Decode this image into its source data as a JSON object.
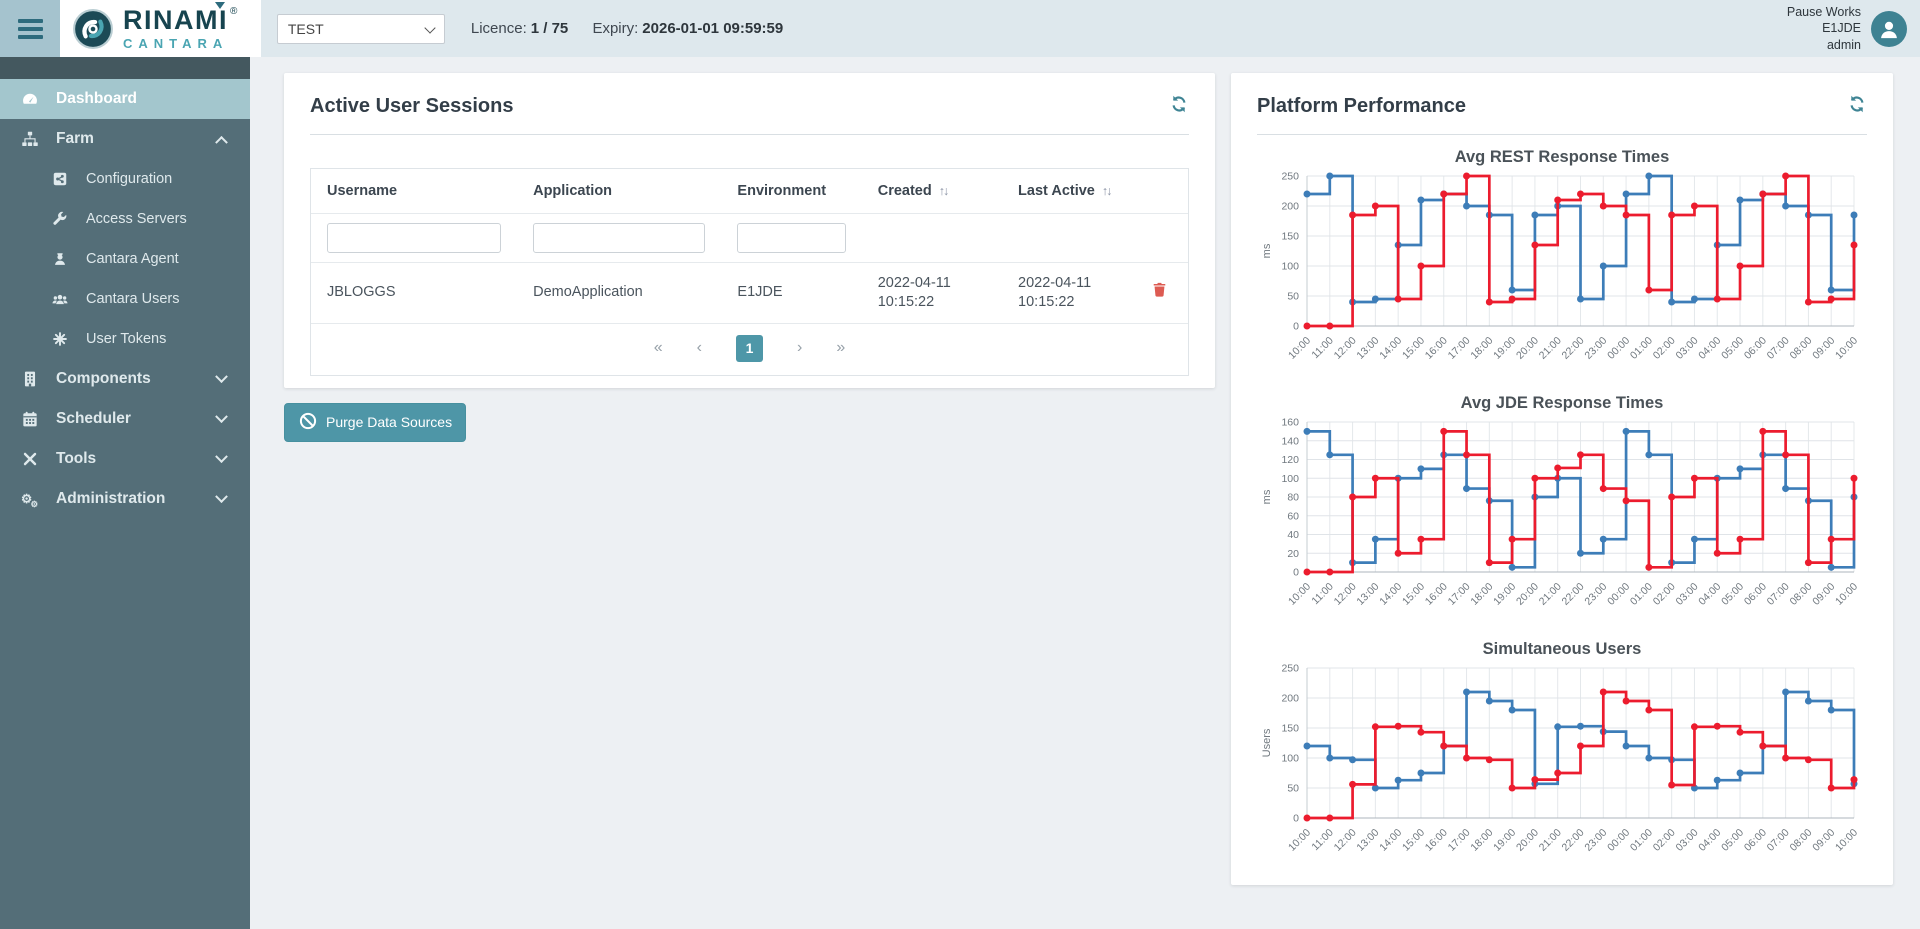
{
  "brand": {
    "name": "RINAMI",
    "reg": "®",
    "sub": "CANTARA"
  },
  "topbar": {
    "env_select": {
      "value": "TEST"
    },
    "licence_label": "Licence:",
    "licence_value": "1 / 75",
    "expiry_label": "Expiry:",
    "expiry_value": "2026-01-01 09:59:59",
    "user": {
      "action": "Pause Works",
      "environment": "E1JDE",
      "role": "admin"
    }
  },
  "colors": {
    "accent_teal": "#4e97a8",
    "sidebar_bg": "#546e78",
    "sidebar_active_bg": "#a3c6cd",
    "topbar_bg": "#dee8ed",
    "chart_blue": "#3d7db8",
    "chart_red": "#ec1c2e",
    "danger_red": "#dd5b52"
  },
  "sidebar": {
    "items": [
      {
        "label": "Dashboard",
        "icon": "dashboard-icon",
        "active": true
      },
      {
        "label": "Farm",
        "icon": "farm-icon",
        "chevron": "up"
      },
      {
        "label": "Configuration",
        "icon": "configuration-icon",
        "child": true
      },
      {
        "label": "Access Servers",
        "icon": "access-servers-icon",
        "child": true
      },
      {
        "label": "Cantara Agent",
        "icon": "cantara-agent-icon",
        "child": true
      },
      {
        "label": "Cantara Users",
        "icon": "cantara-users-icon",
        "child": true
      },
      {
        "label": "User Tokens",
        "icon": "user-tokens-icon",
        "child": true
      },
      {
        "label": "Components",
        "icon": "components-icon",
        "chevron": "down"
      },
      {
        "label": "Scheduler",
        "icon": "scheduler-icon",
        "chevron": "down"
      },
      {
        "label": "Tools",
        "icon": "tools-icon",
        "chevron": "down"
      },
      {
        "label": "Administration",
        "icon": "administration-icon",
        "chevron": "down"
      }
    ]
  },
  "sessions_panel": {
    "title": "Active User Sessions",
    "refresh_icon": "refresh-icon",
    "table": {
      "columns": [
        {
          "label": "Username",
          "filter": true
        },
        {
          "label": "Application",
          "filter": true
        },
        {
          "label": "Environment",
          "filter": true
        },
        {
          "label": "Created",
          "sortable": true
        },
        {
          "label": "Last Active",
          "sortable": true
        },
        {
          "label": "",
          "action": true
        }
      ],
      "sort_glyph": "↑↓",
      "rows": [
        {
          "username": "JBLOGGS",
          "application": "DemoApplication",
          "environment": "E1JDE",
          "created": [
            "2022-04-11",
            "10:15:22"
          ],
          "last_active": [
            "2022-04-11",
            "10:15:22"
          ],
          "action_icon": "trash-icon"
        }
      ]
    },
    "pagination": {
      "first": "«",
      "prev": "‹",
      "page": "1",
      "next": "›",
      "last": "»"
    },
    "purge_label": "Purge Data Sources",
    "purge_icon": "ban-icon"
  },
  "performance_panel": {
    "title": "Platform Performance",
    "refresh_icon": "refresh-icon"
  },
  "chart_data": [
    {
      "type": "line",
      "subtype": "step-after",
      "title": "Avg REST Response Times",
      "xlabel": "",
      "ylabel": "ms",
      "ylim": [
        0,
        250
      ],
      "yticks": [
        0,
        50,
        100,
        150,
        200,
        250
      ],
      "grid": true,
      "legend_position": "none",
      "x": [
        "10:00",
        "11:00",
        "12:00",
        "13:00",
        "14:00",
        "15:00",
        "16:00",
        "17:00",
        "18:00",
        "19:00",
        "20:00",
        "21:00",
        "22:00",
        "23:00",
        "00:00",
        "01:00",
        "02:00",
        "03:00",
        "04:00",
        "05:00",
        "06:00",
        "07:00",
        "08:00",
        "09:00",
        "10:00"
      ],
      "series": [
        {
          "name": "blue-series",
          "color": "#3d7db8",
          "values": [
            220,
            250,
            40,
            45,
            135,
            210,
            220,
            200,
            185,
            60,
            185,
            200,
            45,
            100,
            220,
            250,
            40,
            45,
            135,
            210,
            220,
            200,
            185,
            60,
            185
          ]
        },
        {
          "name": "red-series",
          "color": "#ec1c2e",
          "values": [
            0,
            0,
            185,
            200,
            45,
            100,
            220,
            250,
            40,
            45,
            135,
            210,
            220,
            200,
            185,
            60,
            185,
            200,
            45,
            100,
            220,
            250,
            40,
            45,
            135
          ]
        }
      ]
    },
    {
      "type": "line",
      "subtype": "step-after",
      "title": "Avg JDE Response Times",
      "xlabel": "",
      "ylabel": "ms",
      "ylim": [
        0,
        160
      ],
      "yticks": [
        0,
        20,
        40,
        60,
        80,
        100,
        120,
        140,
        160
      ],
      "grid": true,
      "legend_position": "none",
      "x": [
        "10:00",
        "11:00",
        "12:00",
        "13:00",
        "14:00",
        "15:00",
        "16:00",
        "17:00",
        "18:00",
        "19:00",
        "20:00",
        "21:00",
        "22:00",
        "23:00",
        "00:00",
        "01:00",
        "02:00",
        "03:00",
        "04:00",
        "05:00",
        "06:00",
        "07:00",
        "08:00",
        "09:00",
        "10:00"
      ],
      "series": [
        {
          "name": "blue-series",
          "color": "#3d7db8",
          "values": [
            150,
            125,
            10,
            35,
            100,
            110,
            125,
            89,
            76,
            5,
            80,
            100,
            20,
            35,
            150,
            125,
            10,
            35,
            100,
            110,
            125,
            89,
            76,
            5,
            80
          ]
        },
        {
          "name": "red-series",
          "color": "#ec1c2e",
          "values": [
            0,
            0,
            80,
            100,
            20,
            35,
            150,
            125,
            10,
            35,
            100,
            111,
            125,
            89,
            76,
            5,
            80,
            100,
            20,
            35,
            150,
            125,
            10,
            35,
            100
          ]
        }
      ]
    },
    {
      "type": "line",
      "subtype": "step-after",
      "title": "Simultaneous Users",
      "xlabel": "",
      "ylabel": "Users",
      "ylim": [
        0,
        250
      ],
      "yticks": [
        0,
        50,
        100,
        150,
        200,
        250
      ],
      "grid": true,
      "legend_position": "none",
      "x": [
        "10:00",
        "11:00",
        "12:00",
        "13:00",
        "14:00",
        "15:00",
        "16:00",
        "17:00",
        "18:00",
        "19:00",
        "20:00",
        "21:00",
        "22:00",
        "23:00",
        "00:00",
        "01:00",
        "02:00",
        "03:00",
        "04:00",
        "05:00",
        "06:00",
        "07:00",
        "08:00",
        "09:00",
        "10:00"
      ],
      "series": [
        {
          "name": "blue-series",
          "color": "#3d7db8",
          "values": [
            120,
            100,
            97,
            50,
            63,
            75,
            120,
            210,
            195,
            180,
            57,
            152,
            153,
            144,
            120,
            100,
            97,
            50,
            63,
            75,
            120,
            210,
            195,
            180,
            57
          ]
        },
        {
          "name": "red-series",
          "color": "#ec1c2e",
          "values": [
            0,
            0,
            56,
            152,
            153,
            143,
            120,
            100,
            97,
            50,
            64,
            75,
            120,
            210,
            195,
            180,
            55,
            152,
            153,
            143,
            120,
            100,
            97,
            50,
            64
          ]
        }
      ]
    }
  ]
}
